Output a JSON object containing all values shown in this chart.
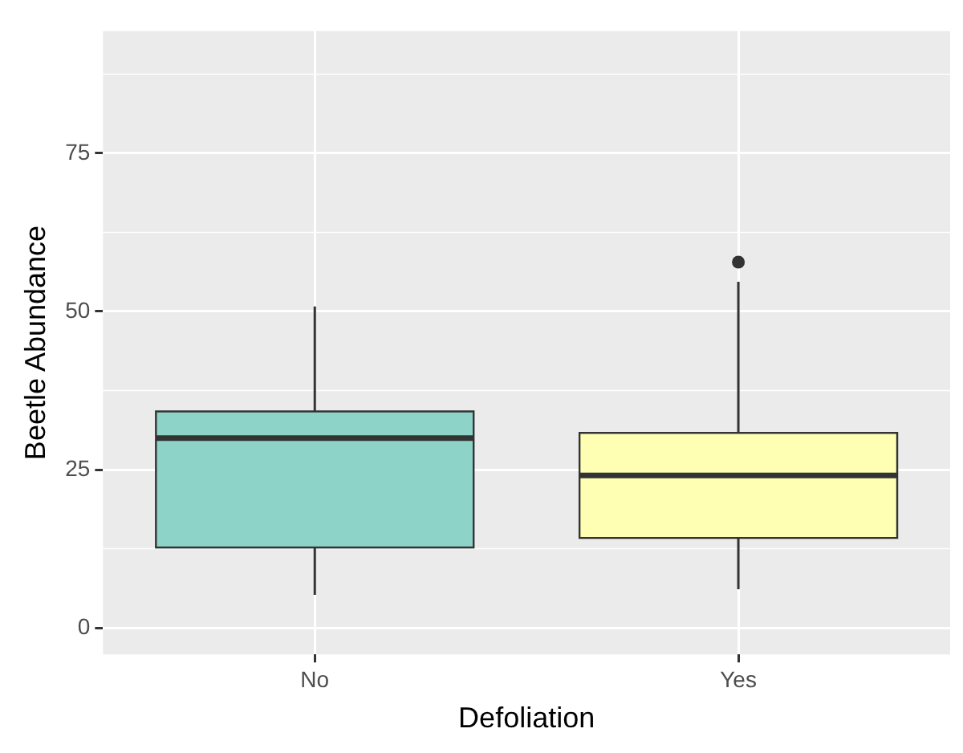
{
  "chart_data": {
    "type": "box",
    "xlabel": "Defoliation",
    "ylabel": "Beetle Abundance",
    "categories": [
      "No",
      "Yes"
    ],
    "colors": [
      "#8dd3c7",
      "#ffffb3"
    ],
    "boxes": [
      {
        "low": 5.2,
        "q1": 12.7,
        "median": 30,
        "q3": 34.2,
        "high": 50.8
      },
      {
        "low": 6.1,
        "q1": 14.2,
        "median": 24.1,
        "q3": 30.8,
        "high": 54.7,
        "outliers": [
          57.8
        ]
      }
    ],
    "ylim": [
      -4.2,
      94.3
    ],
    "yticks": [
      0,
      25,
      50,
      75
    ],
    "grid": true,
    "legend": false
  }
}
